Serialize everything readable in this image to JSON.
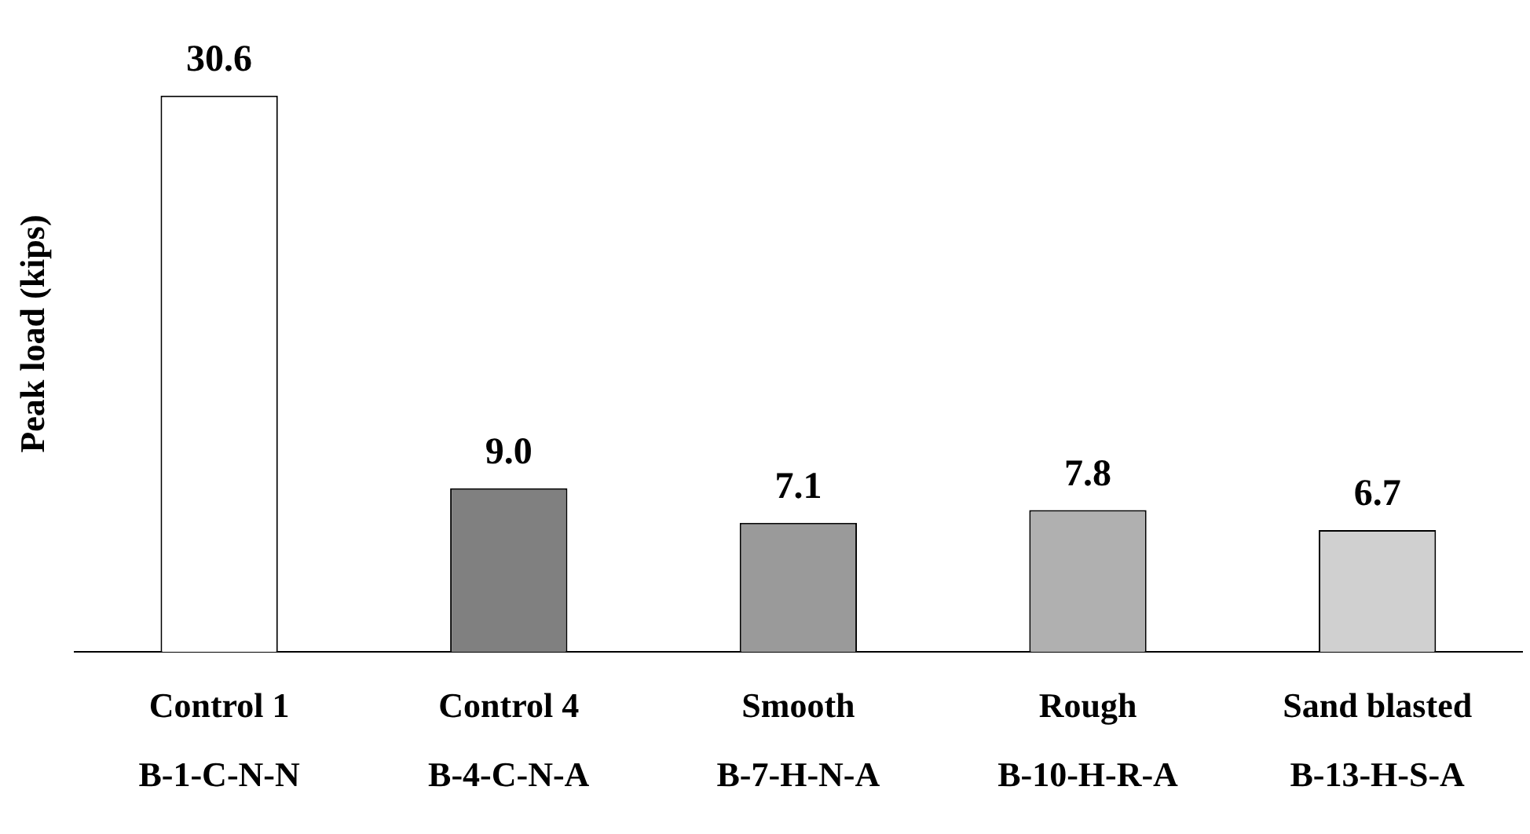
{
  "chart_data": {
    "type": "bar",
    "ylabel": "Peak load (kips)",
    "categories": [
      "Control 1\nB-1-C-N-N",
      "Control 4\nB-4-C-N-A",
      "Smooth\nB-7-H-N-A",
      "Rough\nB-10-H-R-A",
      "Sand blasted\nB-13-H-S-A"
    ],
    "values": [
      30.6,
      9.0,
      7.1,
      7.8,
      6.7
    ],
    "colors": [
      "#ffffff",
      "#808080",
      "#9a9a9a",
      "#b0b0b0",
      "#d0d0d0"
    ],
    "value_labels": [
      "30.6",
      "9.0",
      "7.1",
      "7.8",
      "6.7"
    ],
    "grid": false,
    "legend": false
  }
}
